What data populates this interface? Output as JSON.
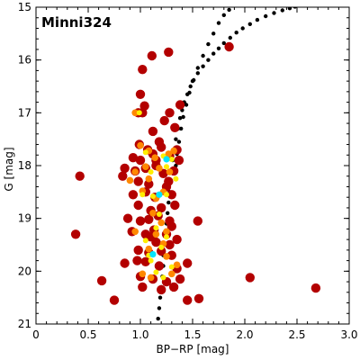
{
  "chart_data": {
    "type": "scatter",
    "title": "Minni324",
    "xlabel": "BP−RP [mag]",
    "ylabel": "G [mag]",
    "xlim": [
      0.0,
      3.0
    ],
    "ylim": [
      21,
      15
    ],
    "y_inverted": true,
    "xticks": [
      "0",
      "0.5",
      "1.0",
      "1.5",
      "2.0",
      "2.5",
      "3.0"
    ],
    "xtick_values": [
      0,
      0.5,
      1.0,
      1.5,
      2.0,
      2.5,
      3.0
    ],
    "yticks": [
      "15",
      "16",
      "17",
      "18",
      "19",
      "20",
      "21"
    ],
    "ytick_values": [
      15,
      16,
      17,
      18,
      19,
      20,
      21
    ],
    "grid": false,
    "colors": {
      "member_outer": "#b30000",
      "member_orange": "#ff8800",
      "member_yellow": "#ffee00",
      "member_cyan": "#00e5ff",
      "isochrone": "#000000"
    },
    "series": [
      {
        "kind": "isochrone",
        "color": "#000000",
        "x": [
          1.17,
          1.18,
          1.19,
          1.2,
          1.21,
          1.22,
          1.22,
          1.23,
          1.24,
          1.25,
          1.26,
          1.27,
          1.28,
          1.29,
          1.3,
          1.31,
          1.33,
          1.34,
          1.36,
          1.38,
          1.4,
          1.42,
          1.45,
          1.48,
          1.51,
          1.55,
          1.6,
          1.65,
          1.7,
          1.75,
          1.8,
          1.86,
          1.92,
          1.98,
          2.05,
          2.12,
          2.2,
          2.28,
          2.36,
          2.43,
          2.48
        ],
        "y": [
          20.9,
          20.7,
          20.5,
          20.3,
          20.1,
          19.9,
          19.7,
          19.5,
          19.3,
          19.1,
          18.9,
          18.7,
          18.5,
          18.3,
          18.1,
          17.9,
          17.7,
          17.5,
          17.3,
          17.1,
          16.95,
          16.8,
          16.65,
          16.5,
          16.38,
          16.25,
          16.12,
          16.0,
          15.88,
          15.78,
          15.68,
          15.58,
          15.48,
          15.4,
          15.32,
          15.24,
          15.17,
          15.11,
          15.06,
          15.02,
          14.99
        ]
      },
      {
        "kind": "isochrone",
        "color": "#000000",
        "x": [
          1.85,
          1.8,
          1.75,
          1.7,
          1.65,
          1.6,
          1.55,
          1.5,
          1.47,
          1.44,
          1.41,
          1.39,
          1.37,
          1.35,
          1.34
        ],
        "y": [
          15.05,
          15.15,
          15.3,
          15.5,
          15.7,
          15.92,
          16.15,
          16.4,
          16.62,
          16.85,
          17.08,
          17.3,
          17.55,
          17.78,
          18.0
        ]
      },
      {
        "kind": "members",
        "color": "#b30000",
        "points": [
          [
            1.11,
            15.92
          ],
          [
            1.27,
            15.85
          ],
          [
            1.02,
            16.18
          ],
          [
            1.85,
            15.75
          ],
          [
            1.0,
            16.65
          ],
          [
            1.04,
            16.87
          ],
          [
            0.98,
            17.0
          ],
          [
            1.02,
            17.0
          ],
          [
            1.28,
            17.0
          ],
          [
            1.38,
            16.85
          ],
          [
            1.23,
            17.15
          ],
          [
            1.12,
            17.35
          ],
          [
            1.33,
            17.28
          ],
          [
            1.18,
            17.55
          ],
          [
            0.99,
            17.6
          ],
          [
            1.07,
            17.7
          ],
          [
            1.2,
            17.65
          ],
          [
            1.35,
            17.7
          ],
          [
            0.93,
            17.85
          ],
          [
            1.0,
            17.9
          ],
          [
            1.12,
            17.78
          ],
          [
            1.28,
            17.82
          ],
          [
            1.37,
            17.9
          ],
          [
            0.85,
            18.05
          ],
          [
            0.95,
            18.1
          ],
          [
            1.05,
            18.05
          ],
          [
            1.15,
            18.0
          ],
          [
            1.22,
            18.15
          ],
          [
            1.32,
            18.1
          ],
          [
            0.42,
            18.2
          ],
          [
            0.83,
            18.2
          ],
          [
            0.98,
            18.3
          ],
          [
            1.08,
            18.35
          ],
          [
            1.27,
            18.3
          ],
          [
            0.93,
            18.55
          ],
          [
            1.05,
            18.5
          ],
          [
            1.14,
            18.6
          ],
          [
            1.3,
            18.55
          ],
          [
            0.98,
            18.75
          ],
          [
            1.1,
            18.85
          ],
          [
            1.2,
            18.8
          ],
          [
            1.33,
            18.75
          ],
          [
            0.88,
            19.0
          ],
          [
            1.0,
            19.05
          ],
          [
            1.08,
            19.02
          ],
          [
            1.17,
            18.95
          ],
          [
            1.28,
            19.05
          ],
          [
            1.55,
            19.05
          ],
          [
            0.92,
            19.25
          ],
          [
            1.05,
            19.3
          ],
          [
            1.13,
            19.22
          ],
          [
            1.25,
            19.3
          ],
          [
            0.38,
            19.3
          ],
          [
            1.15,
            19.45
          ],
          [
            1.28,
            19.5
          ],
          [
            1.35,
            19.4
          ],
          [
            0.98,
            19.6
          ],
          [
            1.08,
            19.65
          ],
          [
            1.2,
            19.62
          ],
          [
            1.3,
            19.7
          ],
          [
            0.85,
            19.85
          ],
          [
            0.97,
            19.8
          ],
          [
            1.05,
            19.82
          ],
          [
            1.18,
            19.9
          ],
          [
            1.35,
            19.95
          ],
          [
            1.45,
            19.85
          ],
          [
            0.63,
            20.18
          ],
          [
            1.0,
            20.1
          ],
          [
            1.12,
            20.15
          ],
          [
            1.25,
            20.2
          ],
          [
            1.38,
            20.15
          ],
          [
            2.05,
            20.12
          ],
          [
            1.02,
            20.3
          ],
          [
            1.2,
            20.35
          ],
          [
            1.32,
            20.3
          ],
          [
            2.68,
            20.32
          ],
          [
            0.75,
            20.55
          ],
          [
            1.45,
            20.55
          ],
          [
            1.56,
            20.52
          ],
          [
            1.15,
            17.9
          ],
          [
            1.25,
            18.4
          ],
          [
            1.1,
            19.35
          ],
          [
            1.3,
            19.15
          ]
        ]
      },
      {
        "kind": "members",
        "color": "#ff8800",
        "points": [
          [
            0.95,
            17.0
          ],
          [
            1.0,
            17.62
          ],
          [
            1.08,
            17.72
          ],
          [
            1.14,
            17.85
          ],
          [
            1.27,
            17.78
          ],
          [
            1.32,
            17.72
          ],
          [
            1.05,
            18.02
          ],
          [
            1.18,
            18.05
          ],
          [
            0.95,
            18.12
          ],
          [
            1.28,
            18.12
          ],
          [
            0.9,
            18.28
          ],
          [
            1.08,
            18.25
          ],
          [
            1.02,
            18.48
          ],
          [
            1.22,
            18.5
          ],
          [
            1.15,
            18.62
          ],
          [
            1.12,
            18.9
          ],
          [
            1.2,
            19.08
          ],
          [
            0.95,
            19.25
          ],
          [
            1.15,
            19.3
          ],
          [
            1.22,
            19.48
          ],
          [
            1.08,
            19.58
          ],
          [
            1.25,
            19.72
          ],
          [
            1.35,
            19.88
          ],
          [
            1.02,
            20.05
          ],
          [
            1.1,
            20.12
          ],
          [
            1.3,
            20.05
          ],
          [
            1.25,
            19.25
          ]
        ]
      },
      {
        "kind": "members",
        "color": "#ffee00",
        "points": [
          [
            0.99,
            17.0
          ],
          [
            1.05,
            17.75
          ],
          [
            1.22,
            17.82
          ],
          [
            1.3,
            17.88
          ],
          [
            1.1,
            18.12
          ],
          [
            1.25,
            18.02
          ],
          [
            1.02,
            18.55
          ],
          [
            1.12,
            18.58
          ],
          [
            1.25,
            18.55
          ],
          [
            1.18,
            18.92
          ],
          [
            1.15,
            19.18
          ],
          [
            1.25,
            19.35
          ],
          [
            1.05,
            19.42
          ],
          [
            1.2,
            19.55
          ],
          [
            1.1,
            19.8
          ],
          [
            1.3,
            19.92
          ],
          [
            1.15,
            20.02
          ],
          [
            1.22,
            20.12
          ],
          [
            1.08,
            19.7
          ],
          [
            1.34,
            18.25
          ]
        ]
      },
      {
        "kind": "members",
        "color": "#00e5ff",
        "points": [
          [
            1.25,
            17.88
          ],
          [
            1.12,
            19.68
          ],
          [
            1.18,
            18.55
          ]
        ]
      }
    ]
  }
}
